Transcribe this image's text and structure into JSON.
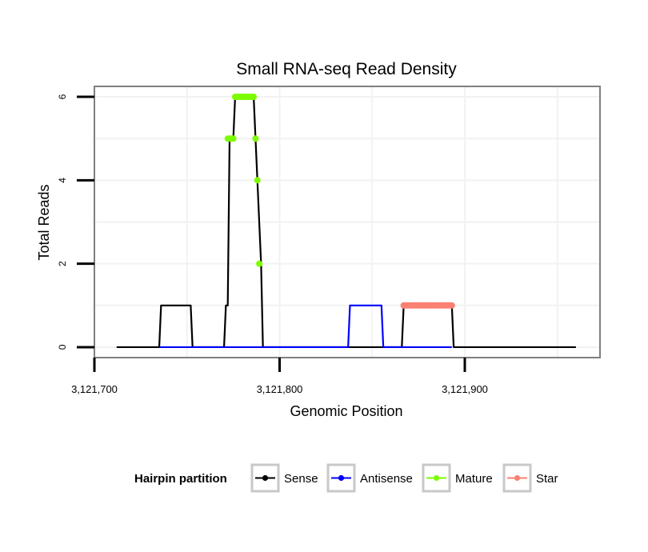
{
  "chart_data": {
    "type": "line",
    "title": "Small RNA-seq Read Density",
    "xlabel": "Genomic Position",
    "ylabel": "Total Reads",
    "xlim": [
      3121700,
      3121973
    ],
    "ylim": [
      -0.25,
      6.25
    ],
    "x_ticks": [
      3121700,
      3121800,
      3121900
    ],
    "x_tick_labels": [
      "3,121,700",
      "3,121,800",
      "3,121,900"
    ],
    "y_ticks": [
      0,
      2,
      4,
      6
    ],
    "y_tick_labels": [
      "0",
      "2",
      "4",
      "6"
    ],
    "grid": true,
    "colors": {
      "Sense": "#000000",
      "Antisense": "#0000ff",
      "Mature": "#7cfc00",
      "Star": "#fa8072"
    },
    "series": [
      {
        "name": "Sense",
        "x": [
          3121712,
          3121735,
          3121736,
          3121752,
          3121753,
          3121770,
          3121771,
          3121772,
          3121773,
          3121775,
          3121776,
          3121786,
          3121787,
          3121788,
          3121789,
          3121790,
          3121791,
          3121866,
          3121867,
          3121893,
          3121894,
          3121960
        ],
        "y": [
          0,
          0,
          1,
          1,
          0,
          0,
          1,
          1,
          5,
          5,
          6,
          6,
          5,
          4,
          3,
          2,
          0,
          0,
          1,
          1,
          0,
          0
        ]
      },
      {
        "name": "Antisense",
        "x": [
          3121735,
          3121752,
          3121770,
          3121791,
          3121837,
          3121838,
          3121855,
          3121856,
          3121866,
          3121893
        ],
        "y": [
          0,
          0,
          0,
          0,
          0,
          1,
          1,
          0,
          0,
          0
        ]
      },
      {
        "name": "Mature",
        "x": [
          3121772,
          3121773,
          3121774,
          3121775,
          3121776,
          3121777,
          3121778,
          3121779,
          3121780,
          3121781,
          3121782,
          3121783,
          3121784,
          3121785,
          3121786,
          3121787,
          3121788,
          3121789
        ],
        "y": [
          5,
          5,
          5,
          5,
          6,
          6,
          6,
          6,
          6,
          6,
          6,
          6,
          6,
          6,
          6,
          5,
          4,
          2
        ]
      },
      {
        "name": "Star",
        "x": [
          3121867,
          3121868,
          3121869,
          3121870,
          3121871,
          3121872,
          3121873,
          3121874,
          3121875,
          3121876,
          3121877,
          3121878,
          3121879,
          3121880,
          3121881,
          3121882,
          3121883,
          3121884,
          3121885,
          3121886,
          3121887,
          3121888,
          3121889,
          3121890,
          3121891,
          3121892,
          3121893
        ],
        "y": [
          1,
          1,
          1,
          1,
          1,
          1,
          1,
          1,
          1,
          1,
          1,
          1,
          1,
          1,
          1,
          1,
          1,
          1,
          1,
          1,
          1,
          1,
          1,
          1,
          1,
          1,
          1
        ]
      }
    ],
    "legend": {
      "title": "Hairpin partition",
      "position": "bottom",
      "entries": [
        "Sense",
        "Antisense",
        "Mature",
        "Star"
      ]
    }
  }
}
